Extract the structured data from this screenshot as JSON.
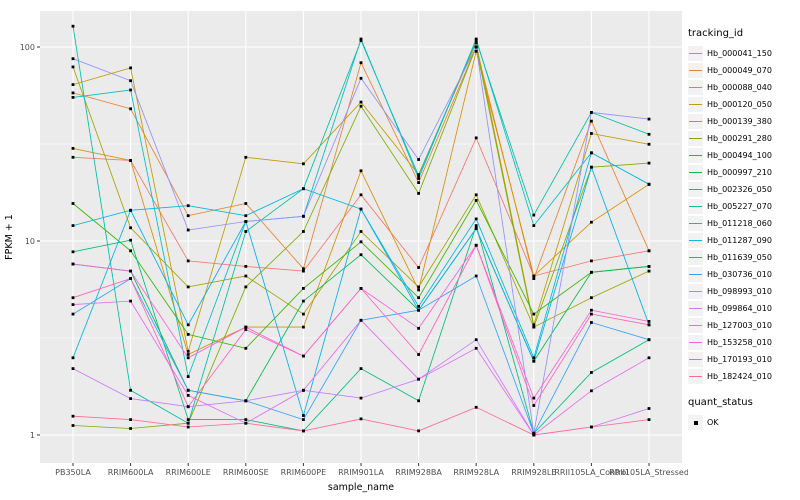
{
  "figure": {
    "kind": "ggplot-line-chart",
    "panel_bg": "#EBEBEB",
    "grid_color": "#FFFFFF",
    "tick_color": "#333333",
    "axis_text_color": "#4D4D4D",
    "axis_title_color": "#000000",
    "point_color": "#000000"
  },
  "legend": {
    "tracking_title": "tracking_id",
    "quant_title": "quant_status",
    "quant_items": [
      {
        "label": "OK",
        "marker": "black-square"
      }
    ]
  },
  "chart_data": {
    "type": "line",
    "title": "",
    "xlabel": "sample_name",
    "ylabel": "FPKM + 1",
    "y_scale": "log10",
    "y_ticks": [
      1,
      10,
      100
    ],
    "y_minor_ticks": [
      3.162,
      31.62
    ],
    "ylim": [
      0.72,
      140
    ],
    "grid": true,
    "legend_position": "right",
    "point_shape": "small-black-square",
    "categories": [
      "PB350LA",
      "RRIM600LA",
      "RRIM600LE",
      "RRIM600SE",
      "RRIM600PE",
      "RRIM901LA",
      "RRIM928BA",
      "RRIM928LA",
      "RRIM928LE",
      "RRII105LA_Control",
      "RRII105LA_Stressed"
    ],
    "series": [
      {
        "name": "Hb_000041_150",
        "color": "#F8766D",
        "values": [
          27,
          26,
          7.9,
          7.4,
          7.0,
          17.3,
          7.3,
          34,
          6.6,
          7.9,
          8.9
        ]
      },
      {
        "name": "Hb_000049_070",
        "color": "#EA8331",
        "values": [
          58,
          48,
          13.5,
          15.6,
          7.2,
          83,
          20,
          100,
          6.4,
          41.5,
          8.9
        ]
      },
      {
        "name": "Hb_000088_040",
        "color": "#D89000",
        "values": [
          30,
          26,
          2.6,
          3.6,
          3.6,
          23,
          5.6,
          95,
          6.6,
          12.5,
          19.6
        ]
      },
      {
        "name": "Hb_000120_050",
        "color": "#C09B00",
        "values": [
          64,
          78,
          2.7,
          27,
          25,
          52,
          22,
          105,
          3.7,
          35.8,
          31.5
        ]
      },
      {
        "name": "Hb_000139_380",
        "color": "#A3A500",
        "values": [
          79,
          11.7,
          5.8,
          6.6,
          4.2,
          11.2,
          5.8,
          17.3,
          3.6,
          5.1,
          7.0
        ]
      },
      {
        "name": "Hb_000291_280",
        "color": "#7CAE00",
        "values": [
          1.12,
          1.08,
          1.15,
          5.8,
          11.2,
          49.5,
          17.6,
          100,
          3.6,
          24,
          25.2
        ]
      },
      {
        "name": "Hb_000494_100",
        "color": "#39B600",
        "values": [
          15.6,
          8.9,
          3.3,
          2.8,
          5.7,
          9.9,
          5.1,
          16.2,
          4.2,
          6.9,
          7.4
        ]
      },
      {
        "name": "Hb_000997_210",
        "color": "#00BB4E",
        "values": [
          7.6,
          7.0,
          1.7,
          1.5,
          4.9,
          8.5,
          4.4,
          11.6,
          2.4,
          6.9,
          7.4
        ]
      },
      {
        "name": "Hb_002326_050",
        "color": "#00BF7D",
        "values": [
          8.8,
          10.1,
          1.2,
          1.2,
          1.05,
          2.2,
          1.5,
          12,
          1.02,
          2.1,
          3.1
        ]
      },
      {
        "name": "Hb_005227_070",
        "color": "#00C1A3",
        "values": [
          128,
          1.7,
          1.15,
          11.2,
          18.6,
          108,
          21.7,
          108,
          13.6,
          46,
          35.5
        ]
      },
      {
        "name": "Hb_011218_060",
        "color": "#00BFC4",
        "values": [
          55,
          60,
          2.0,
          12.6,
          13.4,
          110,
          21,
          110,
          12,
          28.5,
          19.6
        ]
      },
      {
        "name": "Hb_011287_090",
        "color": "#00BAE0",
        "values": [
          2.5,
          14.4,
          15.2,
          13.5,
          18.6,
          14.6,
          4.6,
          13,
          2.5,
          28.5,
          19.6
        ]
      },
      {
        "name": "Hb_011639_050",
        "color": "#00B0F6",
        "values": [
          12,
          14.4,
          3.7,
          12.6,
          1.26,
          14.6,
          4.4,
          11.6,
          2.4,
          24,
          3.7
        ]
      },
      {
        "name": "Hb_030736_010",
        "color": "#35A2FF",
        "values": [
          4.2,
          6.4,
          1.7,
          1.5,
          1.2,
          3.9,
          4.4,
          6.6,
          1.02,
          3.8,
          3.1
        ]
      },
      {
        "name": "Hb_098993_010",
        "color": "#9590FF",
        "values": [
          87,
          67,
          11.4,
          12.6,
          13.4,
          69,
          26.3,
          100,
          1.02,
          46,
          42.5
        ]
      },
      {
        "name": "Hb_099864_010",
        "color": "#C77CFF",
        "values": [
          2.2,
          1.54,
          1.4,
          1.5,
          1.7,
          1.55,
          1.94,
          3.1,
          1.0,
          1.1,
          1.37
        ]
      },
      {
        "name": "Hb_127003_010",
        "color": "#E76BF3",
        "values": [
          4.7,
          4.9,
          1.6,
          1.15,
          1.7,
          3.9,
          1.94,
          2.8,
          1.0,
          1.69,
          2.5
        ]
      },
      {
        "name": "Hb_153258_010",
        "color": "#FA62DB",
        "values": [
          7.6,
          7.0,
          2.5,
          3.6,
          2.55,
          5.7,
          3.55,
          9.5,
          1.55,
          4.4,
          3.85
        ]
      },
      {
        "name": "Hb_170193_010",
        "color": "#FF62BC",
        "values": [
          5.1,
          6.4,
          1.4,
          3.5,
          2.55,
          5.7,
          2.6,
          9.5,
          1.42,
          4.2,
          3.7
        ]
      },
      {
        "name": "Hb_182424_010",
        "color": "#FF6A98",
        "values": [
          1.25,
          1.2,
          1.1,
          1.15,
          1.05,
          1.21,
          1.05,
          1.39,
          1.0,
          1.1,
          1.2
        ]
      }
    ]
  }
}
